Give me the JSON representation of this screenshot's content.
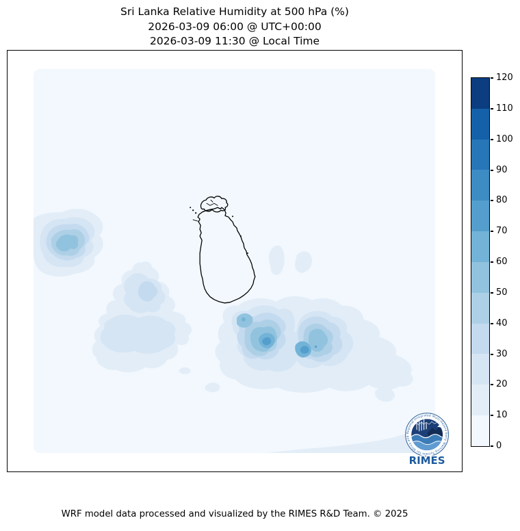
{
  "title": {
    "line1": "Sri Lanka Relative Humidity at 500 hPa (%)",
    "line2": "2026-03-09 06:00 @ UTC+00:00",
    "line3": "2026-03-09 11:30 @ Local Time"
  },
  "footer": {
    "text": "WRF model data processed and visualized by the RIMES R&D Team. © 2025"
  },
  "colorbar": {
    "tick_labels_top_to_bottom": [
      "120",
      "110",
      "100",
      "90",
      "80",
      "70",
      "60",
      "50",
      "40",
      "30",
      "20",
      "10",
      "0"
    ],
    "level_colors_low_to_high": [
      "#f2f8fd",
      "#e2edf8",
      "#d5e5f4",
      "#c4daef",
      "#add0e6",
      "#92c3de",
      "#73b3d8",
      "#549ecd",
      "#3d8cc3",
      "#2676b8",
      "#1561a9",
      "#0b3d80"
    ]
  },
  "logo": {
    "ring_text": "Regional Integrated Multi-Hazard Early Warning System for Africa and Asia",
    "label": "RIMES"
  },
  "chart_data": {
    "type": "heatmap",
    "title": "Sri Lanka Relative Humidity at 500 hPa (%)",
    "subtitle_utc": "2026-03-09 06:00 @ UTC+00:00",
    "subtitle_local": "2026-03-09 11:30 @ Local Time",
    "variable": "Relative Humidity",
    "unit": "%",
    "pressure_level": "500 hPa",
    "region": "Sri Lanka and surrounding ocean",
    "colormap": "Blues",
    "colorbar_range": [
      0,
      120
    ],
    "colorbar_step": 10,
    "legend_position": "right",
    "background_value_range": [
      0,
      10
    ],
    "features": [
      {
        "name": "west-offshore-maximum",
        "location": "west of Sri Lanka, touching left edge of domain",
        "peak_value_range": [
          50,
          60
        ]
      },
      {
        "name": "southwest-offshore-cluster",
        "location": "south-west of the island",
        "peak_value_range": [
          30,
          40
        ]
      },
      {
        "name": "southeast-double-maximum",
        "location": "south-east of the island, two connected cells",
        "peak_value_range": [
          70,
          80
        ]
      },
      {
        "name": "east-offshore-patches",
        "location": "two small patches east of the island",
        "peak_value_range": [
          10,
          20
        ]
      },
      {
        "name": "bottom-edge-band",
        "location": "band along bottom-right edge of domain",
        "peak_value_range": [
          10,
          20
        ]
      }
    ]
  }
}
